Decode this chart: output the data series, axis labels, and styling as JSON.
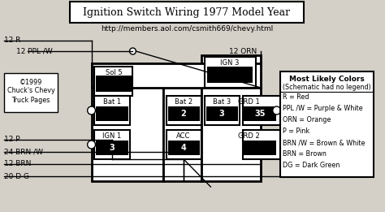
{
  "title": "Ignition Switch Wiring 1977 Model Year",
  "subtitle": "http://members.aol.com/csmith669/chevy.html",
  "bg_color": "#d4d0c8",
  "box_bg": "#ffffff",
  "black": "#000000",
  "wire_labels_left": [
    "12 R",
    "12 PPL /W",
    "12 P",
    "24 BRN /W",
    "12 BRN",
    "20 D G"
  ],
  "wire_label_right": "12 ORN",
  "credit_lines": [
    "©1999",
    "Chuck's Chevy",
    "Truck Pages"
  ],
  "legend_title": "Most Likely Colors",
  "legend_subtitle": "(Schematic had no legend)",
  "legend_items": [
    "R = Red",
    "PPL /W = Purple & White",
    "ORN = Orange",
    "P = Pink",
    "BRN /W = Brown & White",
    "BRN = Brown",
    "DG = Dark Green"
  ]
}
